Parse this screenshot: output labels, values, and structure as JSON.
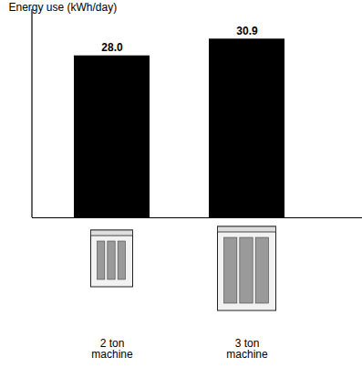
{
  "chart_data": {
    "type": "bar",
    "y_label": "Energy use (kWh/day)",
    "categories": [
      "2 ton machine",
      "3 ton machine"
    ],
    "values": [
      28.0,
      30.9
    ],
    "value_labels": [
      "28.0",
      "30.9"
    ],
    "color": "#000000",
    "ylim": [
      0,
      36
    ],
    "yticks": [],
    "data_labels": true,
    "tick_labels": "x",
    "grid": false
  }
}
